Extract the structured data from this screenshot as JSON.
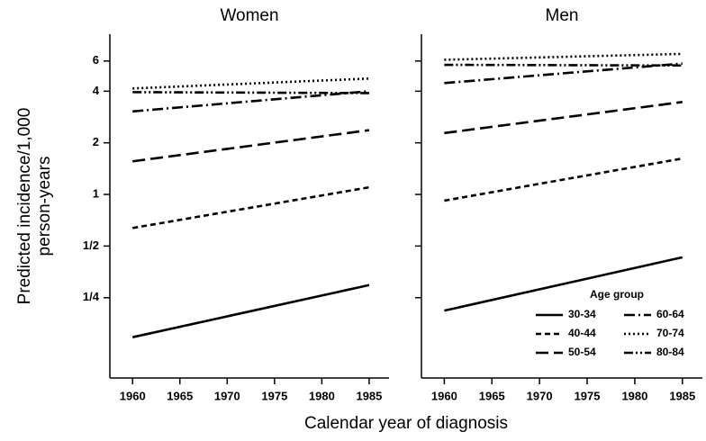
{
  "ylabel": [
    "Predicted incidence/1,000",
    "person-years"
  ],
  "xlabel": "Calendar year of diagnosis",
  "chart_data": [
    {
      "type": "line",
      "title": "Women",
      "log_y": true,
      "x": [
        1960,
        1985
      ],
      "xlim": [
        1957.6,
        1987.1
      ],
      "xticks": [
        1960,
        1965,
        1970,
        1975,
        1980,
        1985
      ],
      "ylim": [
        0.085,
        8.6
      ],
      "yticks": [
        {
          "value": 0.25,
          "label": "1/4"
        },
        {
          "value": 0.5,
          "label": "1/2"
        },
        1,
        2,
        4,
        6
      ],
      "series": [
        {
          "name": "30-34",
          "color": "#000000",
          "dash": "solid",
          "values": [
            0.147,
            0.296
          ]
        },
        {
          "name": "40-44",
          "color": "#000000",
          "dash": "dashed",
          "values": [
            0.637,
            1.1
          ]
        },
        {
          "name": "50-54",
          "color": "#000000",
          "dash": "longdash",
          "values": [
            1.56,
            2.37
          ]
        },
        {
          "name": "60-64",
          "color": "#000000",
          "dash": "dashdot",
          "values": [
            3.05,
            4.0
          ]
        },
        {
          "name": "70-74",
          "color": "#000000",
          "dash": "dotted",
          "values": [
            4.15,
            4.74
          ]
        },
        {
          "name": "80-84",
          "color": "#000000",
          "dash": "dashdotdot",
          "values": [
            3.95,
            3.9
          ]
        }
      ]
    },
    {
      "type": "line",
      "title": "Men",
      "log_y": true,
      "x": [
        1960,
        1985
      ],
      "xlim": [
        1957.6,
        1987.1
      ],
      "xticks": [
        1960,
        1965,
        1970,
        1975,
        1980,
        1985
      ],
      "ylim": [
        0.085,
        8.6
      ],
      "yticks": [
        {
          "value": 0.25,
          "label": "1/4"
        },
        {
          "value": 0.5,
          "label": "1/2"
        },
        1,
        2,
        4,
        6
      ],
      "legend": {
        "title": "Age group",
        "position": "lower right"
      },
      "series": [
        {
          "name": "30-34",
          "color": "#000000",
          "dash": "solid",
          "values": [
            0.21,
            0.43
          ]
        },
        {
          "name": "40-44",
          "color": "#000000",
          "dash": "dashed",
          "values": [
            0.92,
            1.62
          ]
        },
        {
          "name": "50-54",
          "color": "#000000",
          "dash": "longdash",
          "values": [
            2.28,
            3.46
          ]
        },
        {
          "name": "60-64",
          "color": "#000000",
          "dash": "dashdot",
          "values": [
            4.46,
            5.8
          ]
        },
        {
          "name": "70-74",
          "color": "#000000",
          "dash": "dotted",
          "values": [
            6.1,
            6.6
          ]
        },
        {
          "name": "80-84",
          "color": "#000000",
          "dash": "dashdotdot",
          "values": [
            5.7,
            5.65
          ]
        }
      ]
    }
  ]
}
